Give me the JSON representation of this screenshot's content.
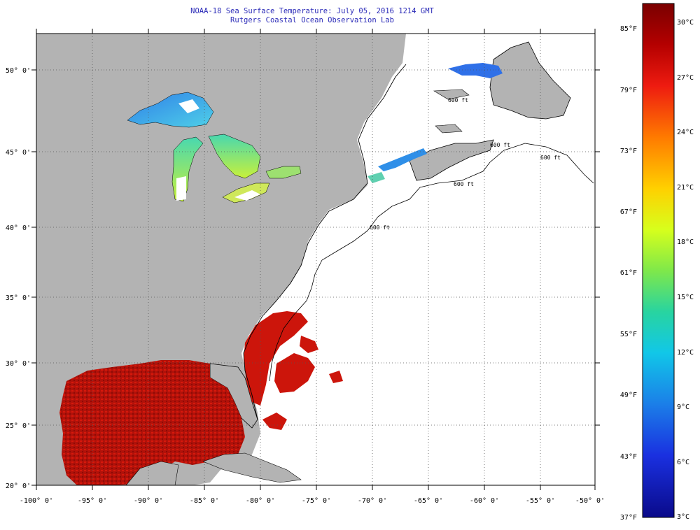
{
  "title": {
    "line1": "NOAA-18 Sea Surface Temperature:  July 05, 2016 1214 GMT",
    "line2": "Rutgers Coastal Ocean Observation Lab"
  },
  "lat_labels": [
    {
      "text": "50° 0'"
    },
    {
      "text": "45° 0'"
    },
    {
      "text": "40° 0'"
    },
    {
      "text": "35° 0'"
    },
    {
      "text": "30° 0'"
    },
    {
      "text": "25° 0'"
    },
    {
      "text": "20° 0'"
    }
  ],
  "lon_labels": [
    {
      "text": "-100° 0'"
    },
    {
      "text": "-95° 0'"
    },
    {
      "text": "-90° 0'"
    },
    {
      "text": "-85° 0'"
    },
    {
      "text": "-80° 0'"
    },
    {
      "text": "-75° 0'"
    },
    {
      "text": "-70° 0'"
    },
    {
      "text": "-65° 0'"
    },
    {
      "text": "-60° 0'"
    },
    {
      "text": "-55° 0'"
    },
    {
      "text": "-50° 0'"
    }
  ],
  "colorbar": {
    "fahrenheit": [
      "85°F",
      "79°F",
      "73°F",
      "67°F",
      "61°F",
      "55°F",
      "49°F",
      "43°F",
      "37°F"
    ],
    "celsius": [
      "30°C",
      "27°C",
      "24°C",
      "21°C",
      "18°C",
      "15°C",
      "12°C",
      "9°C",
      "6°C",
      "3°C"
    ]
  },
  "isobath_labels": [
    "600 ft",
    "600 ft",
    "600 ft",
    "600 ft",
    "600 ft"
  ],
  "colors": {
    "land": "#b3b3b3",
    "ocean_nodata": "#ffffff",
    "title": "#2b2bb8",
    "warm": "#c8140a",
    "cold": "#2f6fe0"
  }
}
